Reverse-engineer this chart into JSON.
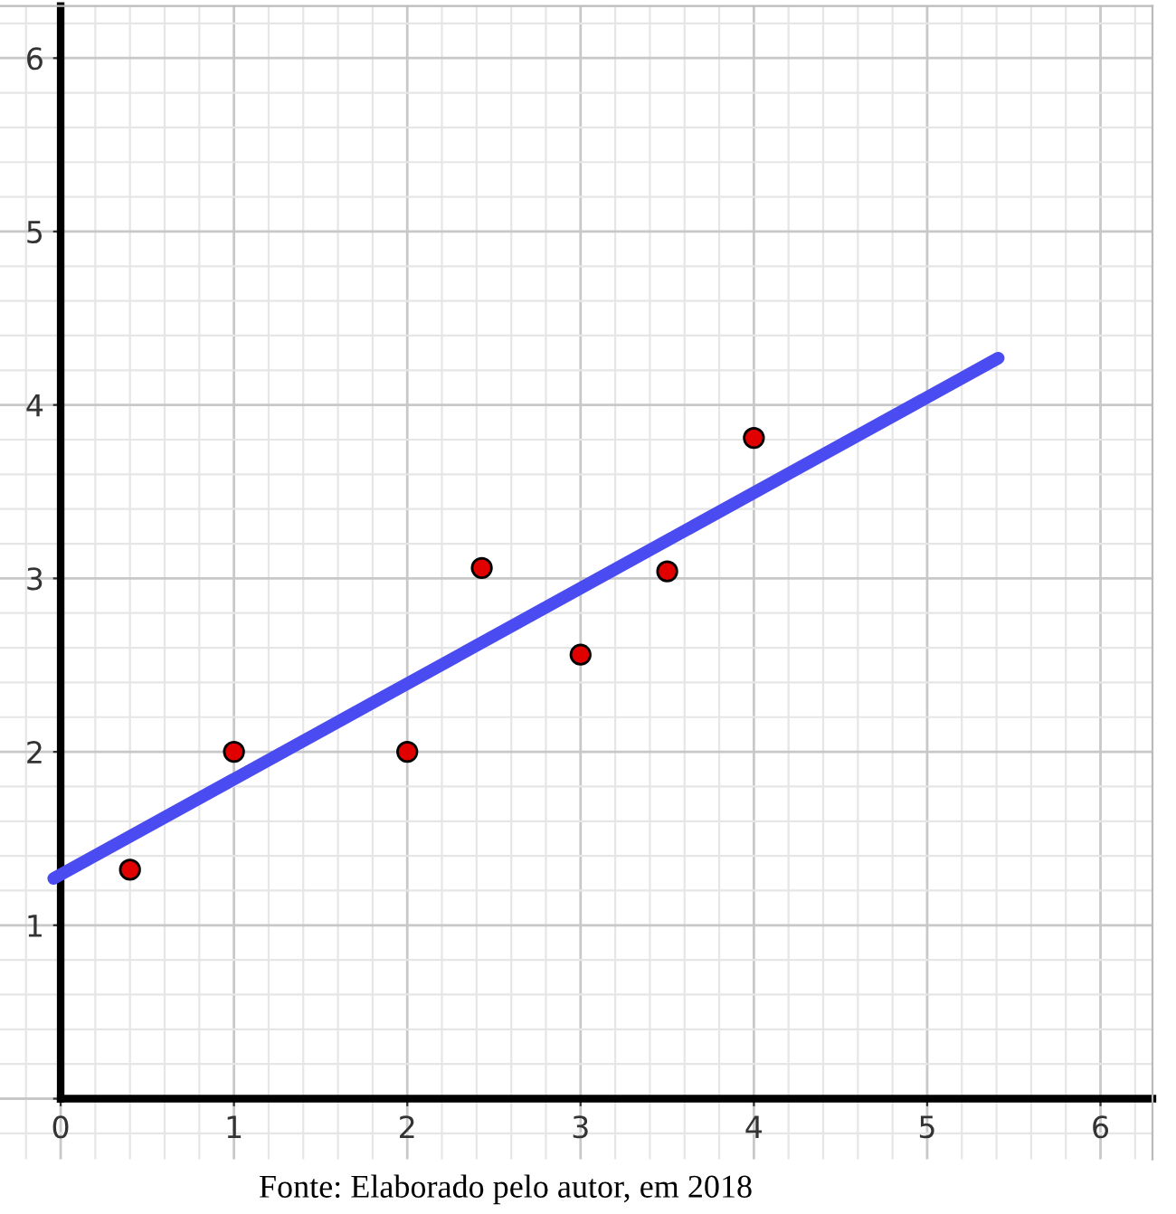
{
  "chart_data": {
    "type": "scatter",
    "xlim": [
      -0.35,
      6.3
    ],
    "ylim": [
      -0.35,
      6.3
    ],
    "xticks": [
      0,
      1,
      2,
      3,
      4,
      5,
      6
    ],
    "yticks": [
      {
        "value": 0,
        "label": null
      },
      1,
      2,
      3,
      4,
      5,
      6
    ],
    "grid": true,
    "legend": false,
    "marker": "circle",
    "series": [
      {
        "type": "line",
        "marker": "none",
        "color": "#4b4bf2",
        "x": [
          -0.04,
          5.41
        ],
        "values": [
          1.27,
          4.27
        ]
      },
      {
        "color": "#e00000",
        "x": [
          0.4,
          1,
          2,
          2.43,
          3,
          3.5,
          4
        ],
        "values": [
          1.32,
          2,
          2,
          3.06,
          2.56,
          3.04,
          3.81
        ]
      }
    ],
    "annotations": [
      "Fonte: Elaborado pelo autor, em 2018"
    ]
  }
}
